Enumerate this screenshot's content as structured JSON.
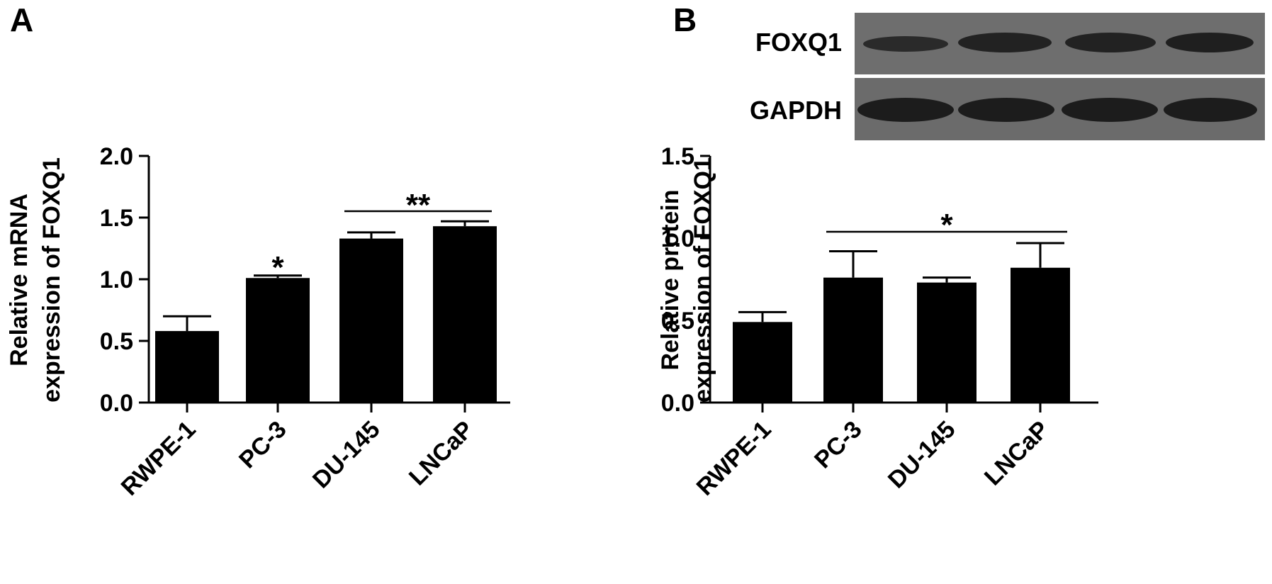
{
  "panels": [
    {
      "letter": "A"
    },
    {
      "letter": "B",
      "blot_labels": [
        "FOXQ1",
        "GAPDH"
      ]
    }
  ],
  "chart_data": [
    {
      "type": "bar",
      "panel": "A",
      "categories": [
        "RWPE-1",
        "PC-3",
        "DU-145",
        "LNCaP"
      ],
      "values": [
        0.58,
        1.01,
        1.33,
        1.43
      ],
      "errors": [
        0.12,
        0.02,
        0.05,
        0.04
      ],
      "ylabel": [
        "Relative mRNA",
        "expression of FOXQ1"
      ],
      "xlabel": "",
      "ylim": [
        0,
        2.0
      ],
      "yticks": [
        "0.0",
        "0.5",
        "1.0",
        "1.5",
        "2.0"
      ],
      "significance": [
        {
          "label": "*",
          "from": 1,
          "to": 1,
          "bracket": false
        },
        {
          "label": "**",
          "from": 2,
          "to": 3,
          "bracket": true
        }
      ]
    },
    {
      "type": "bar",
      "panel": "B",
      "categories": [
        "RWPE-1",
        "PC-3",
        "DU-145",
        "LNCaP"
      ],
      "values": [
        0.49,
        0.76,
        0.73,
        0.82
      ],
      "errors": [
        0.06,
        0.16,
        0.03,
        0.15
      ],
      "ylabel": [
        "Relative protein",
        "expression of FOXQ1"
      ],
      "xlabel": "",
      "ylim": [
        0,
        1.5
      ],
      "yticks": [
        "0.0",
        "0.5",
        "1.0",
        "1.5"
      ],
      "significance": [
        {
          "label": "*",
          "from": 1,
          "to": 3,
          "bracket": true
        }
      ]
    }
  ]
}
